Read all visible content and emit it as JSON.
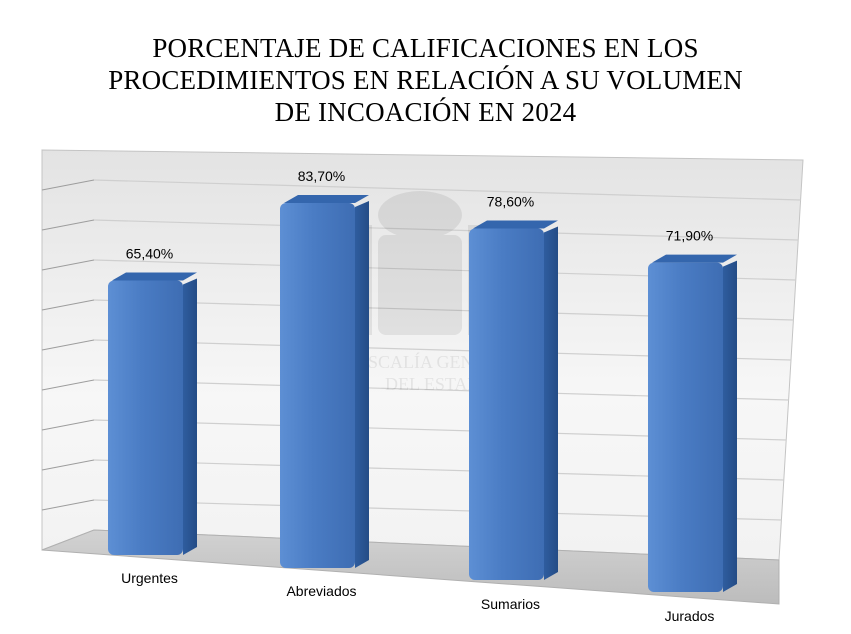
{
  "chart_data": {
    "type": "bar",
    "title_lines": [
      "PORCENTAJE DE CALIFICACIONES EN LOS",
      "PROCEDIMIENTOS EN RELACIÓN A SU VOLUMEN",
      "DE INCOACIÓN EN 2024"
    ],
    "categories": [
      "Urgentes",
      "Abreviados",
      "Sumarios",
      "Jurados"
    ],
    "values": [
      65.4,
      83.7,
      78.6,
      71.9
    ],
    "data_labels": [
      "65,40%",
      "83,70%",
      "78,60%",
      "71,90%"
    ],
    "unit": "%",
    "ylim": [
      0,
      100
    ],
    "grid": true,
    "legend": "none",
    "colors": {
      "bar": "#4a7cc4",
      "bar_dark": "#2d5a9c",
      "bar_light": "#6f9ad6"
    }
  },
  "watermark": {
    "lines": [
      "FISCALÍA GENERAL",
      "DEL ESTADO"
    ]
  }
}
